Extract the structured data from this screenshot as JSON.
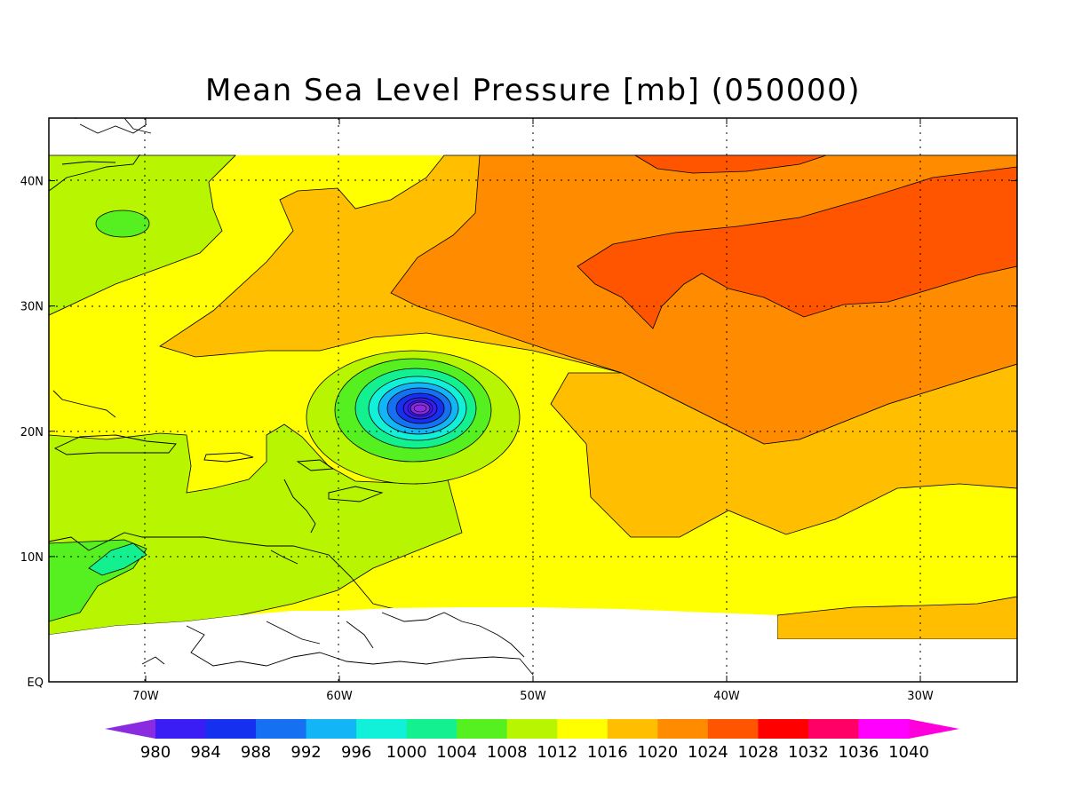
{
  "title": "Mean Sea Level Pressure [mb] (050000)",
  "map": {
    "lon_range": [
      -75,
      -25
    ],
    "lat_range": [
      0,
      45
    ],
    "lon_ticks": [
      {
        "value": -70,
        "label": "70W"
      },
      {
        "value": -60,
        "label": "60W"
      },
      {
        "value": -50,
        "label": "50W"
      },
      {
        "value": -40,
        "label": "40W"
      },
      {
        "value": -30,
        "label": "30W"
      }
    ],
    "lat_ticks": [
      {
        "value": 0,
        "label": "EQ"
      },
      {
        "value": 10,
        "label": "10N"
      },
      {
        "value": 20,
        "label": "20N"
      },
      {
        "value": 30,
        "label": "30N"
      },
      {
        "value": 40,
        "label": "40N"
      }
    ],
    "storm_center": {
      "lon": -56,
      "lat": 22
    }
  },
  "colorbar": {
    "labels": [
      "980",
      "984",
      "988",
      "992",
      "996",
      "1000",
      "1004",
      "1008",
      "1012",
      "1016",
      "1020",
      "1024",
      "1028",
      "1032",
      "1036",
      "1040"
    ],
    "colors": [
      "#8a2be2",
      "#3a1cf5",
      "#1630f0",
      "#1670f2",
      "#12b5f5",
      "#11f0d8",
      "#13f090",
      "#56f020",
      "#b8f500",
      "#ffff00",
      "#ffbf00",
      "#ff8c00",
      "#ff5500",
      "#ff0000",
      "#ff0066",
      "#ff00ff",
      "#ff00dd"
    ]
  }
}
